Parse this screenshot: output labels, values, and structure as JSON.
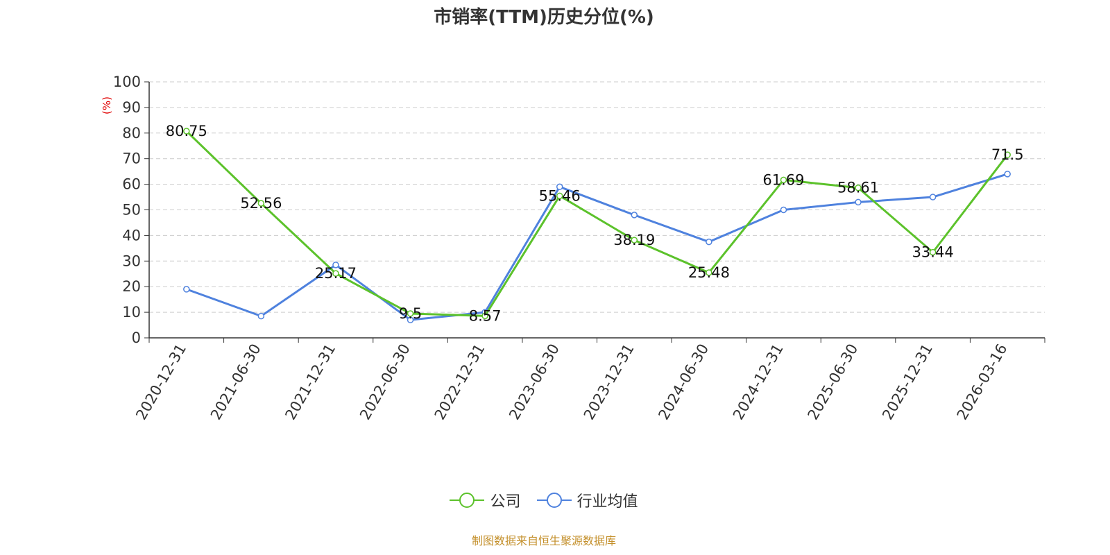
{
  "title": "市销率(TTM)历史分位(%)",
  "source": "制图数据来自恒生聚源数据库",
  "colors": {
    "company": "#5cc22b",
    "industry": "#4f82de",
    "grid": "#cccccc",
    "axis": "#333333",
    "ylabel": "#e00000"
  },
  "legend": {
    "company": "公司",
    "industry": "行业均值"
  },
  "chart_data": {
    "type": "line",
    "title": "市销率(TTM)历史分位(%)",
    "xlabel": "",
    "ylabel": "(%)",
    "ylim": [
      0,
      100
    ],
    "yticks": [
      0,
      10,
      20,
      30,
      40,
      50,
      60,
      70,
      80,
      90,
      100
    ],
    "grid": true,
    "legend_position": "bottom",
    "categories": [
      "2020-12-31",
      "2021-06-30",
      "2021-12-31",
      "2022-06-30",
      "2022-12-31",
      "2023-06-30",
      "2023-12-31",
      "2024-06-30",
      "2024-12-31",
      "2025-06-30",
      "2025-12-31",
      "2026-03-16"
    ],
    "series": [
      {
        "name": "公司",
        "values": [
          80.75,
          52.56,
          25.17,
          9.5,
          8.57,
          55.46,
          38.19,
          25.48,
          61.69,
          58.61,
          33.44,
          71.5
        ],
        "labels": [
          "80.75",
          "52.56",
          "25.17",
          "9.5",
          "8.57",
          "55.46",
          "38.19",
          "25.48",
          "61.69",
          "58.61",
          "33.44",
          "71.5"
        ]
      },
      {
        "name": "行业均值",
        "values": [
          19,
          8.5,
          28.5,
          7,
          10,
          59,
          48,
          37.5,
          50,
          53,
          55,
          64
        ]
      }
    ]
  }
}
